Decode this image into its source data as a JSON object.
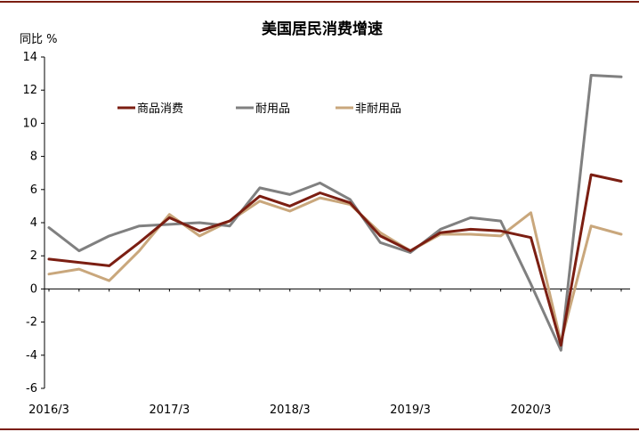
{
  "chart_data": {
    "type": "line",
    "title": "美国居民消费增速",
    "unit": "同比 %",
    "ylim": [
      -6,
      14
    ],
    "yticks": [
      14,
      12,
      10,
      8,
      6,
      4,
      2,
      0,
      -2,
      -4,
      -6
    ],
    "x": [
      "2016/3",
      "2016/6",
      "2016/9",
      "2016/12",
      "2017/3",
      "2017/6",
      "2017/9",
      "2017/12",
      "2018/3",
      "2018/6",
      "2018/9",
      "2018/12",
      "2019/3",
      "2019/6",
      "2019/9",
      "2019/12",
      "2020/3",
      "2020/6",
      "2020/9",
      "2020/12"
    ],
    "xtick_labels": [
      "2016/3",
      "2017/3",
      "2018/3",
      "2019/3",
      "2020/3"
    ],
    "grid": false,
    "legend_position": "top-left",
    "series": [
      {
        "name": "商品消费",
        "color": "#7b1e12",
        "values": [
          1.8,
          1.6,
          1.4,
          2.8,
          4.3,
          3.5,
          4.1,
          5.6,
          5.0,
          5.8,
          5.2,
          3.2,
          2.3,
          3.4,
          3.6,
          3.5,
          3.1,
          -3.4,
          6.9,
          6.5
        ]
      },
      {
        "name": "耐用品",
        "color": "#808080",
        "values": [
          3.7,
          2.3,
          3.2,
          3.8,
          3.9,
          4.0,
          3.8,
          6.1,
          5.7,
          6.4,
          5.4,
          2.8,
          2.2,
          3.6,
          4.3,
          4.1,
          0.3,
          -3.7,
          12.9,
          12.8
        ]
      },
      {
        "name": "非耐用品",
        "color": "#c9a77c",
        "values": [
          0.9,
          1.2,
          0.5,
          2.3,
          4.5,
          3.2,
          4.1,
          5.3,
          4.7,
          5.5,
          5.1,
          3.4,
          2.3,
          3.3,
          3.3,
          3.2,
          4.6,
          -3.2,
          3.8,
          3.3
        ]
      }
    ]
  }
}
